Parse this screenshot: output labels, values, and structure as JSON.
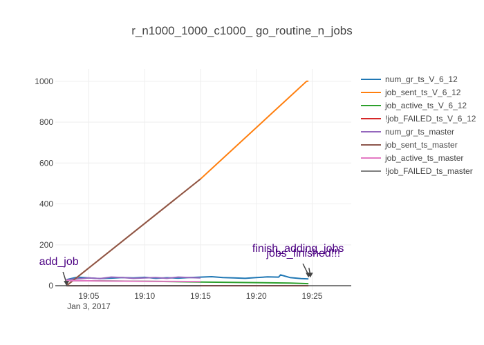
{
  "chart_data": {
    "type": "line",
    "title": "r_n1000_1000_c1000_ go_routine_n_jobs",
    "x_unit": "time",
    "x_range": [
      "19:02:00",
      "19:28:30"
    ],
    "x_ticks": [
      "19:05",
      "19:10",
      "19:15",
      "19:20",
      "19:25"
    ],
    "x_date_label": "Jan 3, 2017",
    "ylim": [
      -20,
      1060
    ],
    "y_ticks": [
      0,
      200,
      400,
      600,
      800,
      1000
    ],
    "grid": true,
    "legend_position": "right",
    "series": [
      {
        "name": "num_gr_ts_V_6_12",
        "color": "#1f77b4",
        "points": [
          [
            "19:03:00",
            30
          ],
          [
            "19:04:00",
            42
          ],
          [
            "19:05:00",
            38
          ],
          [
            "19:06:00",
            35
          ],
          [
            "19:07:00",
            37
          ],
          [
            "19:08:00",
            40
          ],
          [
            "19:09:00",
            38
          ],
          [
            "19:10:00",
            41
          ],
          [
            "19:11:00",
            36
          ],
          [
            "19:12:00",
            39
          ],
          [
            "19:13:00",
            37
          ],
          [
            "19:14:00",
            40
          ],
          [
            "19:15:00",
            42
          ],
          [
            "19:16:00",
            44
          ],
          [
            "19:17:00",
            40
          ],
          [
            "19:18:00",
            38
          ],
          [
            "19:19:00",
            36
          ],
          [
            "19:20:00",
            40
          ],
          [
            "19:21:00",
            43
          ],
          [
            "19:22:00",
            42
          ],
          [
            "19:22:10",
            53
          ],
          [
            "19:23:00",
            40
          ],
          [
            "19:24:00",
            35
          ],
          [
            "19:24:40",
            33
          ]
        ]
      },
      {
        "name": "job_sent_ts_V_6_12",
        "color": "#ff7f0e",
        "points": [
          [
            "19:03:00",
            0
          ],
          [
            "19:15:00",
            522
          ],
          [
            "19:24:30",
            1000
          ],
          [
            "19:24:40",
            1000
          ]
        ]
      },
      {
        "name": "job_active_ts_V_6_12",
        "color": "#2ca02c",
        "points": [
          [
            "19:03:00",
            25
          ],
          [
            "19:10:00",
            22
          ],
          [
            "19:15:00",
            18
          ],
          [
            "19:20:00",
            15
          ],
          [
            "19:23:00",
            13
          ],
          [
            "19:24:40",
            10
          ]
        ]
      },
      {
        "name": "!job_FAILED_ts_V_6_12",
        "color": "#d62728",
        "points": [
          [
            "19:03:00",
            0
          ],
          [
            "19:24:40",
            0
          ]
        ]
      },
      {
        "name": "num_gr_ts_master",
        "color": "#9467bd",
        "points": [
          [
            "19:03:00",
            30
          ],
          [
            "19:05:00",
            38
          ],
          [
            "19:06:00",
            35
          ],
          [
            "19:07:00",
            42
          ],
          [
            "19:08:00",
            40
          ],
          [
            "19:09:00",
            36
          ],
          [
            "19:10:00",
            38
          ],
          [
            "19:11:00",
            40
          ],
          [
            "19:12:00",
            36
          ],
          [
            "19:13:00",
            42
          ],
          [
            "19:14:00",
            40
          ],
          [
            "19:15:00",
            38
          ]
        ]
      },
      {
        "name": "job_sent_ts_master",
        "color": "#8c564b",
        "points": [
          [
            "19:03:00",
            0
          ],
          [
            "19:15:00",
            522
          ]
        ]
      },
      {
        "name": "job_active_ts_master",
        "color": "#e377c2",
        "points": [
          [
            "19:03:00",
            25
          ],
          [
            "19:09:00",
            22
          ],
          [
            "19:15:00",
            20
          ]
        ]
      },
      {
        "name": "!job_FAILED_ts_master",
        "color": "#7f7f7f",
        "points": [
          [
            "19:03:00",
            0
          ],
          [
            "19:15:00",
            0
          ]
        ]
      }
    ],
    "annotations": [
      {
        "text": "add_job",
        "x": "19:03:00",
        "y": 0
      },
      {
        "text": "finish_adding_jobs",
        "x": "19:24:40",
        "y": 40
      },
      {
        "text": "jobs_finished!!!",
        "x": "19:24:50",
        "y": 40
      }
    ]
  }
}
